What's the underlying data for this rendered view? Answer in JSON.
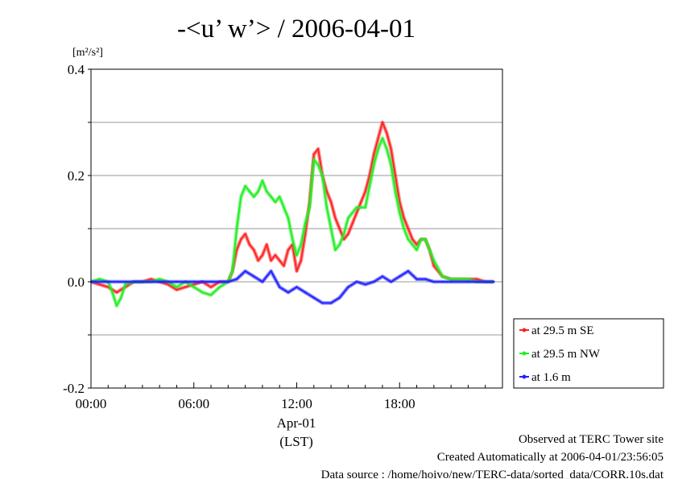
{
  "chart_data": {
    "type": "line",
    "title": "-<u’ w’> / 2006-04-01",
    "ylabel": "[m²/s²]",
    "ylim": [
      -0.2,
      0.4
    ],
    "yticks": [
      -0.2,
      0.0,
      0.2,
      0.4
    ],
    "ytick_labels": [
      "-0.2",
      "0.0",
      "0.2",
      "0.4"
    ],
    "xlim": [
      0,
      24
    ],
    "xticks": [
      0,
      6,
      12,
      18
    ],
    "xtick_labels": [
      "00:00",
      "06:00",
      "12:00",
      "18:00"
    ],
    "xdate_label": "Apr-01",
    "xunit_label": "(LST)",
    "grid": true,
    "legend_position": "right",
    "series": [
      {
        "name": "at 29.5 m SE",
        "color": "#ff2222",
        "x": [
          0,
          0.5,
          1,
          1.5,
          2,
          2.5,
          3,
          3.5,
          4,
          4.5,
          5,
          5.5,
          6,
          6.5,
          7,
          7.5,
          8,
          8.25,
          8.5,
          8.75,
          9,
          9.25,
          9.5,
          9.75,
          10,
          10.25,
          10.5,
          10.75,
          11,
          11.25,
          11.5,
          11.75,
          12,
          12.25,
          12.5,
          12.75,
          13,
          13.25,
          13.5,
          13.75,
          14,
          14.25,
          14.5,
          14.75,
          15,
          15.25,
          15.5,
          15.75,
          16,
          16.25,
          16.5,
          16.75,
          17,
          17.25,
          17.5,
          17.75,
          18,
          18.25,
          18.5,
          18.75,
          19,
          19.25,
          19.5,
          19.75,
          20,
          20.5,
          21,
          21.5,
          22,
          22.5,
          23,
          23.5
        ],
        "values": [
          0.0,
          -0.005,
          -0.01,
          -0.02,
          -0.01,
          0.0,
          0.0,
          0.005,
          0.0,
          -0.005,
          -0.015,
          -0.01,
          -0.005,
          0.0,
          -0.01,
          0.0,
          0.0,
          0.02,
          0.06,
          0.08,
          0.09,
          0.07,
          0.06,
          0.04,
          0.05,
          0.07,
          0.04,
          0.05,
          0.04,
          0.03,
          0.06,
          0.07,
          0.02,
          0.04,
          0.09,
          0.15,
          0.24,
          0.25,
          0.2,
          0.17,
          0.15,
          0.12,
          0.1,
          0.08,
          0.09,
          0.11,
          0.13,
          0.15,
          0.17,
          0.2,
          0.24,
          0.27,
          0.3,
          0.28,
          0.25,
          0.2,
          0.15,
          0.12,
          0.1,
          0.08,
          0.07,
          0.08,
          0.08,
          0.06,
          0.03,
          0.01,
          0.005,
          0.005,
          0.005,
          0.005,
          0.0,
          0.0
        ]
      },
      {
        "name": "at 29.5 m NW",
        "color": "#22ee22",
        "x": [
          0,
          0.5,
          1,
          1.25,
          1.5,
          1.75,
          2,
          2.5,
          3,
          3.5,
          4,
          4.5,
          5,
          5.5,
          6,
          6.5,
          7,
          7.5,
          8,
          8.25,
          8.5,
          8.75,
          9,
          9.25,
          9.5,
          9.75,
          10,
          10.25,
          10.5,
          10.75,
          11,
          11.25,
          11.5,
          11.75,
          12,
          12.25,
          12.5,
          12.75,
          13,
          13.25,
          13.5,
          13.75,
          14,
          14.25,
          14.5,
          14.75,
          15,
          15.25,
          15.5,
          15.75,
          16,
          16.25,
          16.5,
          16.75,
          17,
          17.25,
          17.5,
          17.75,
          18,
          18.25,
          18.5,
          18.75,
          19,
          19.25,
          19.5,
          19.75,
          20,
          20.5,
          21,
          21.5,
          22,
          22.5,
          23,
          23.5
        ],
        "values": [
          0.0,
          0.005,
          0.0,
          -0.02,
          -0.045,
          -0.03,
          -0.005,
          0.0,
          0.0,
          0.0,
          0.005,
          0.0,
          -0.01,
          0.0,
          -0.01,
          -0.02,
          -0.025,
          -0.01,
          0.0,
          0.02,
          0.1,
          0.16,
          0.18,
          0.17,
          0.16,
          0.17,
          0.19,
          0.17,
          0.16,
          0.15,
          0.16,
          0.14,
          0.12,
          0.08,
          0.05,
          0.07,
          0.11,
          0.14,
          0.23,
          0.22,
          0.2,
          0.14,
          0.1,
          0.06,
          0.07,
          0.09,
          0.12,
          0.13,
          0.14,
          0.14,
          0.14,
          0.18,
          0.22,
          0.25,
          0.27,
          0.25,
          0.22,
          0.17,
          0.13,
          0.1,
          0.08,
          0.07,
          0.06,
          0.08,
          0.08,
          0.06,
          0.04,
          0.01,
          0.005,
          0.005,
          0.005,
          0.0,
          0.0,
          0.0
        ]
      },
      {
        "name": "at 1.6 m",
        "color": "#2222ff",
        "x": [
          0,
          1,
          2,
          3,
          4,
          5,
          6,
          7,
          8,
          8.5,
          9,
          9.5,
          10,
          10.5,
          11,
          11.5,
          12,
          12.5,
          13,
          13.5,
          14,
          14.5,
          15,
          15.5,
          16,
          16.5,
          17,
          17.5,
          18,
          18.5,
          19,
          19.5,
          20,
          20.5,
          21,
          22,
          23,
          23.5
        ],
        "values": [
          0.0,
          0.0,
          0.0,
          0.0,
          0.0,
          0.0,
          0.0,
          0.0,
          0.0,
          0.005,
          0.02,
          0.01,
          0.0,
          0.02,
          -0.01,
          -0.02,
          -0.01,
          -0.02,
          -0.03,
          -0.04,
          -0.04,
          -0.03,
          -0.01,
          0.0,
          -0.005,
          0.0,
          0.01,
          0.0,
          0.01,
          0.02,
          0.005,
          0.005,
          0.0,
          0.0,
          0.0,
          0.0,
          0.0,
          0.0
        ]
      }
    ]
  },
  "footer": {
    "line1": "Observed at TERC Tower site",
    "line2": "Created Automatically at 2006-04-01/23:56:05",
    "line3": "Data source : /home/hoivo/new/TERC-data/sorted_data/CORR.10s.dat"
  }
}
